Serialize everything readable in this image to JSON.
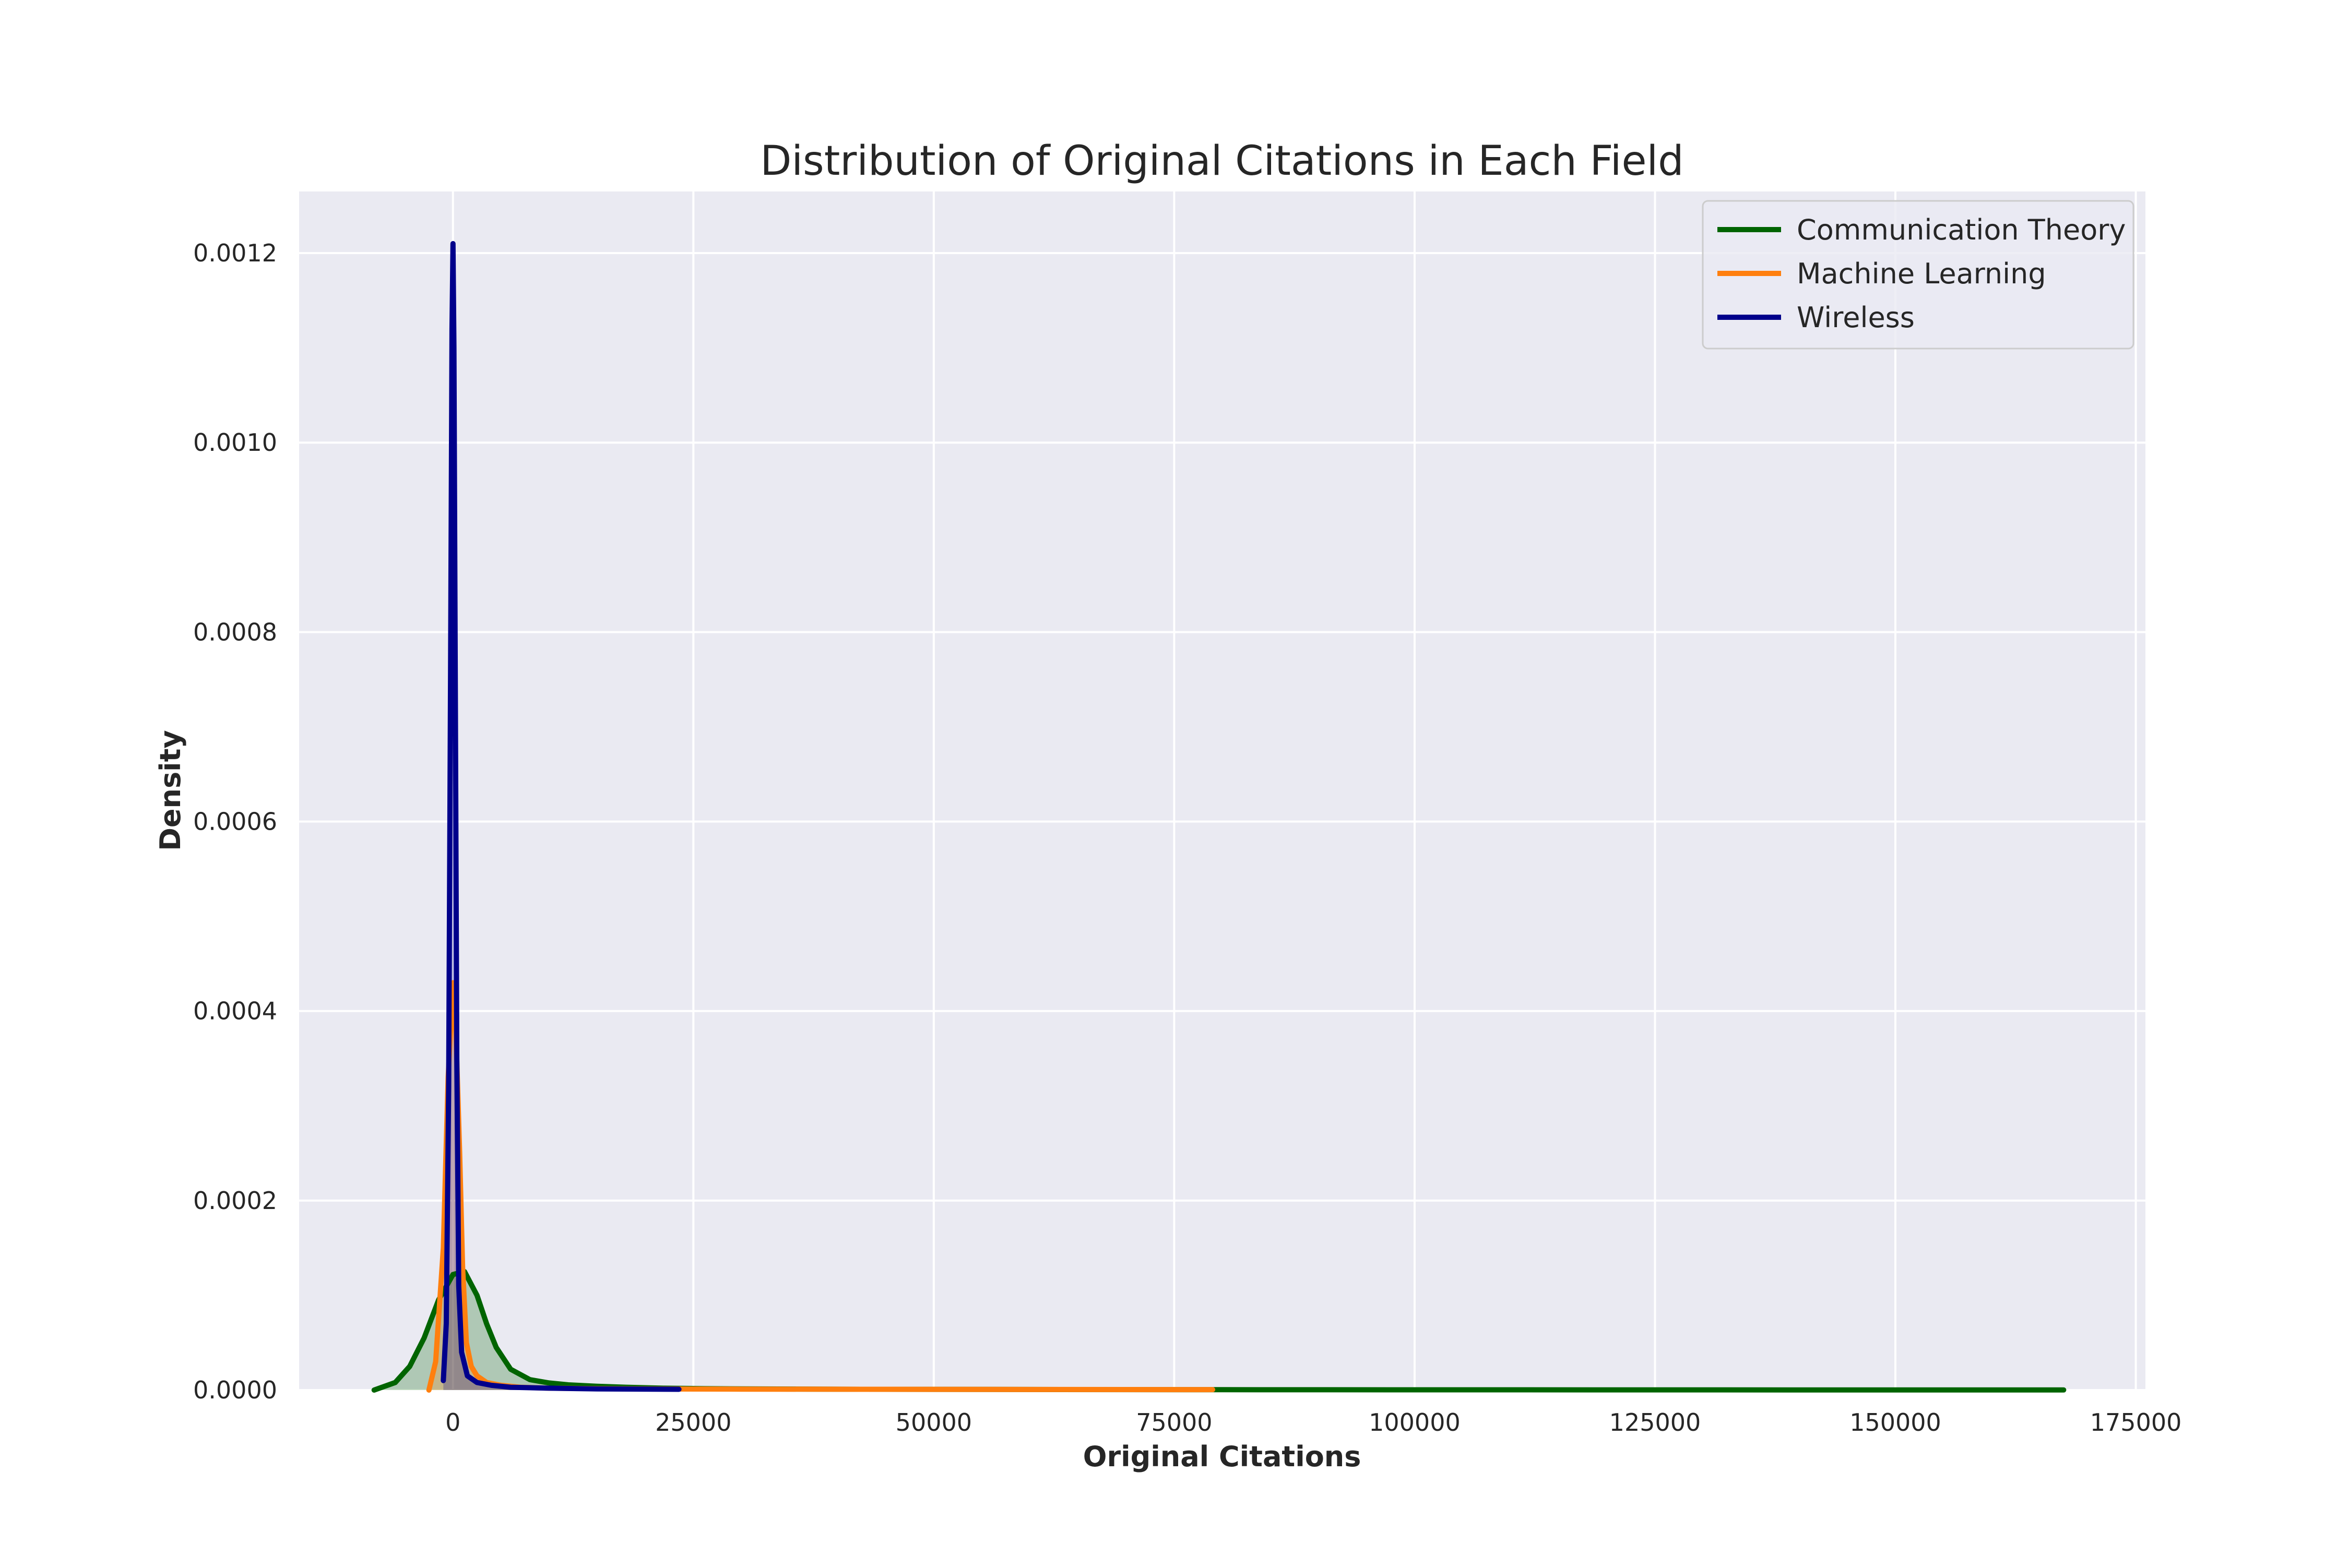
{
  "chart_data": {
    "type": "area",
    "title": "Distribution of Original Citations in Each Field",
    "xlabel": "Original Citations",
    "ylabel": "Density",
    "xlim": [
      -16000,
      176000
    ],
    "ylim": [
      0,
      0.001265
    ],
    "x_ticks": [
      0,
      25000,
      50000,
      75000,
      100000,
      125000,
      150000,
      175000
    ],
    "x_tick_labels": [
      "0",
      "25000",
      "50000",
      "75000",
      "100000",
      "125000",
      "150000",
      "175000"
    ],
    "y_ticks": [
      0,
      0.0002,
      0.0004,
      0.0006,
      0.0008,
      0.001,
      0.0012
    ],
    "y_tick_labels": [
      "0.0000",
      "0.0002",
      "0.0004",
      "0.0006",
      "0.0008",
      "0.0010",
      "0.0012"
    ],
    "grid": true,
    "legend_position": "top-right",
    "series": [
      {
        "name": "Communication Theory",
        "color": "#006400",
        "x": [
          -8200,
          -6000,
          -4500,
          -3000,
          -1500,
          0,
          1200,
          2500,
          3500,
          4500,
          6000,
          8000,
          10000,
          12000,
          15000,
          18000,
          22000,
          26000,
          30000,
          40000,
          60000,
          80000,
          100000,
          120000,
          140000,
          167500
        ],
        "y": [
          0,
          8e-06,
          2.5e-05,
          5.5e-05,
          9.5e-05,
          0.000122,
          0.000125,
          0.0001,
          7e-05,
          4.5e-05,
          2.2e-05,
          1.1e-05,
          7.5e-06,
          5.5e-06,
          4e-06,
          3e-06,
          2e-06,
          1.5e-06,
          1.2e-06,
          9e-07,
          6e-07,
          4e-07,
          3e-07,
          2e-07,
          1.5e-07,
          1e-07
        ]
      },
      {
        "name": "Machine Learning",
        "color": "#ff7f0e",
        "x": [
          -2500,
          -1800,
          -1000,
          -500,
          0,
          300,
          700,
          1000,
          1400,
          1900,
          2500,
          3500,
          5000,
          7000,
          10000,
          15000,
          20000,
          30000,
          45000,
          60000,
          79000
        ],
        "y": [
          0,
          3e-05,
          0.00015,
          0.00033,
          0.00043,
          0.00038,
          0.00025,
          0.00013,
          5e-05,
          2.5e-05,
          1.5e-05,
          8e-06,
          5e-06,
          3e-06,
          2e-06,
          1.5e-06,
          1.2e-06,
          1e-06,
          8e-07,
          6e-07,
          5e-07
        ]
      },
      {
        "name": "Wireless",
        "color": "#00008b",
        "x": [
          -1000,
          -700,
          -450,
          -250,
          -100,
          0,
          100,
          250,
          400,
          600,
          900,
          1500,
          2500,
          4000,
          6000,
          10000,
          15000,
          23500
        ],
        "y": [
          1e-05,
          7e-05,
          0.00032,
          0.00075,
          0.00112,
          0.00121,
          0.0011,
          0.00072,
          0.00035,
          0.00011,
          4e-05,
          1.5e-05,
          8e-06,
          5e-06,
          3e-06,
          2e-06,
          1.2e-06,
          8e-07
        ]
      }
    ]
  }
}
